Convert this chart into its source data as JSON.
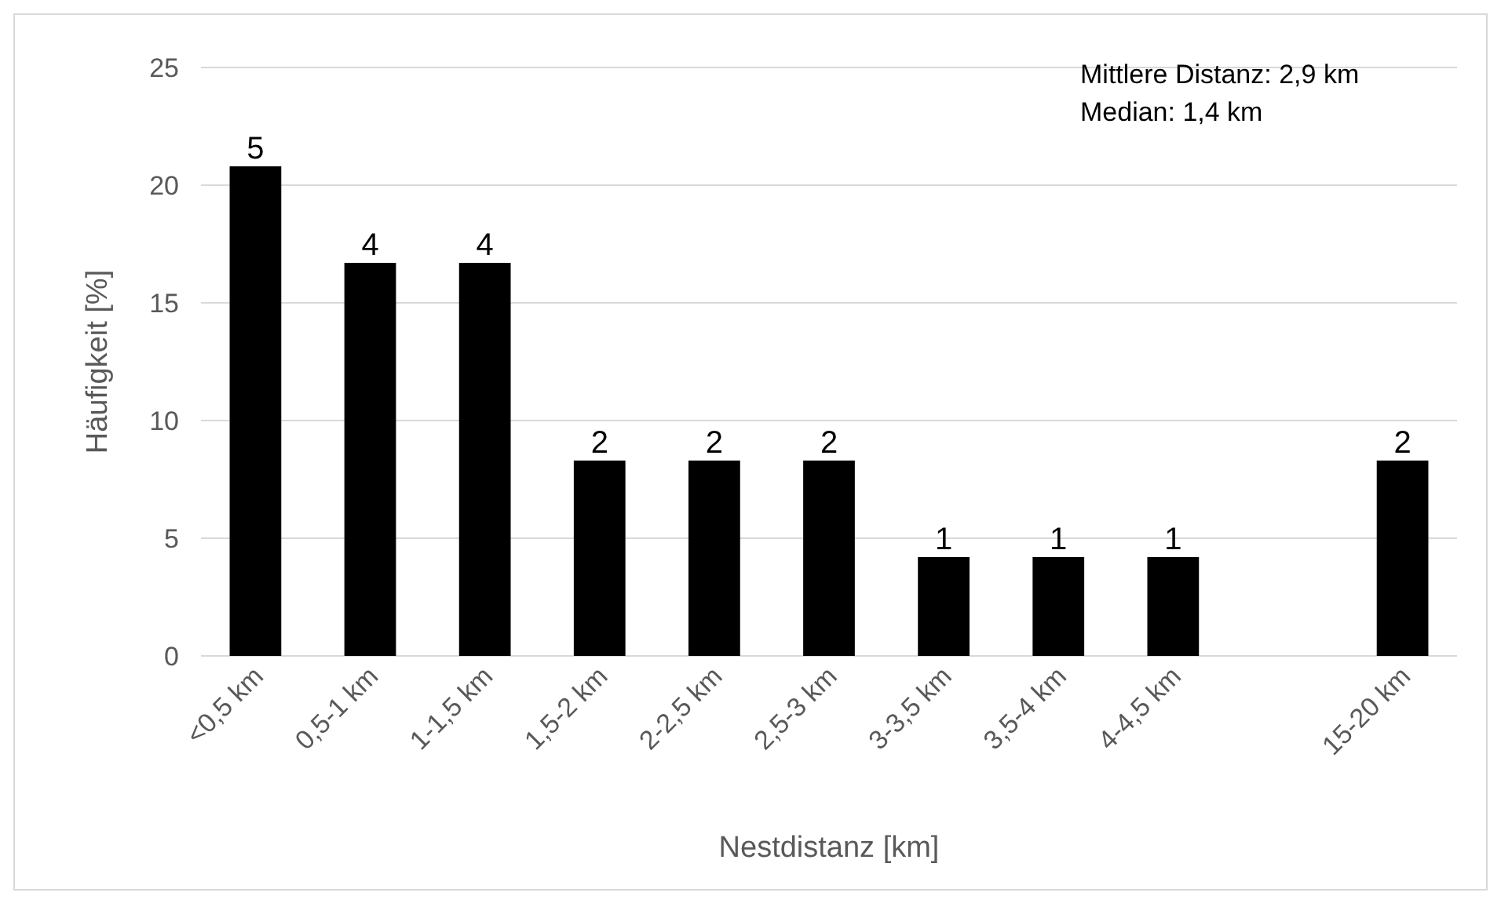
{
  "chart_data": {
    "type": "bar",
    "xlabel": "Nestdistanz [km]",
    "ylabel": "Häufigkeit [%]",
    "categories": [
      "<0,5 km",
      "0,5-1 km",
      "1-1,5 km",
      "1,5-2 km",
      "2-2,5 km",
      "2,5-3 km",
      "3-3,5 km",
      "3,5-4 km",
      "4-4,5 km",
      null,
      "15-20 km"
    ],
    "values": [
      20.8,
      16.7,
      16.7,
      8.3,
      8.3,
      8.3,
      4.2,
      4.2,
      4.2,
      null,
      8.3
    ],
    "color": "#000000",
    "ylim": [
      0,
      25
    ],
    "yticks": [
      0,
      5,
      10,
      15,
      20,
      25
    ],
    "grid": "y",
    "annotations": [
      "Mittlere Distanz: 2,9 km",
      "Median: 1,4 km",
      {
        "text": "5",
        "x": "<0,5 km",
        "y": 20.8
      },
      {
        "text": "4",
        "x": "0,5-1 km",
        "y": 16.7
      },
      {
        "text": "4",
        "x": "1-1,5 km",
        "y": 16.7
      },
      {
        "text": "2",
        "x": "1,5-2 km",
        "y": 8.3
      },
      {
        "text": "2",
        "x": "2-2,5 km",
        "y": 8.3
      },
      {
        "text": "2",
        "x": "2,5-3 km",
        "y": 8.3
      },
      {
        "text": "1",
        "x": "3-3,5 km",
        "y": 4.2
      },
      {
        "text": "1",
        "x": "3,5-4 km",
        "y": 4.2
      },
      {
        "text": "1",
        "x": "4-4,5 km",
        "y": 4.2
      },
      {
        "text": "2",
        "x": "15-20 km",
        "y": 8.3
      }
    ]
  }
}
